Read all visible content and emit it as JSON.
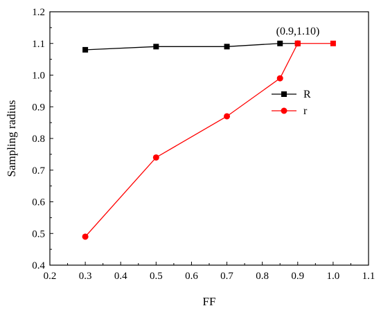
{
  "chart_data": {
    "type": "line",
    "xlabel": "FF",
    "ylabel": "Sampling radius",
    "xlim": [
      0.2,
      1.1
    ],
    "ylim": [
      0.4,
      1.2
    ],
    "xticks": [
      "0.2",
      "0.3",
      "0.4",
      "0.5",
      "0.6",
      "0.7",
      "0.8",
      "0.9",
      "1.0",
      "1.1"
    ],
    "yticks": [
      "0.4",
      "0.5",
      "0.6",
      "0.7",
      "0.8",
      "0.9",
      "1.0",
      "1.1",
      "1.2"
    ],
    "grid": false,
    "legend_position": "right",
    "series": [
      {
        "name": "R",
        "color": "#000000",
        "marker": "square",
        "points": [
          {
            "x": 0.3,
            "y": 1.08
          },
          {
            "x": 0.5,
            "y": 1.09
          },
          {
            "x": 0.7,
            "y": 1.09
          },
          {
            "x": 0.85,
            "y": 1.1
          },
          {
            "x": 0.9,
            "y": 1.1
          }
        ]
      },
      {
        "name": "r",
        "color": "#ff0000",
        "marker": "circle",
        "points": [
          {
            "x": 0.3,
            "y": 0.49
          },
          {
            "x": 0.5,
            "y": 0.74
          },
          {
            "x": 0.7,
            "y": 0.87
          },
          {
            "x": 0.85,
            "y": 0.99
          },
          {
            "x": 0.9,
            "y": 1.1
          }
        ]
      }
    ],
    "extension": {
      "color": "#ff0000",
      "marker": "square",
      "points": [
        {
          "x": 0.9,
          "y": 1.1
        },
        {
          "x": 1.0,
          "y": 1.1
        }
      ]
    },
    "annotation": {
      "text": "(0.9,1.10)",
      "x": 0.9,
      "y": 1.1
    }
  }
}
